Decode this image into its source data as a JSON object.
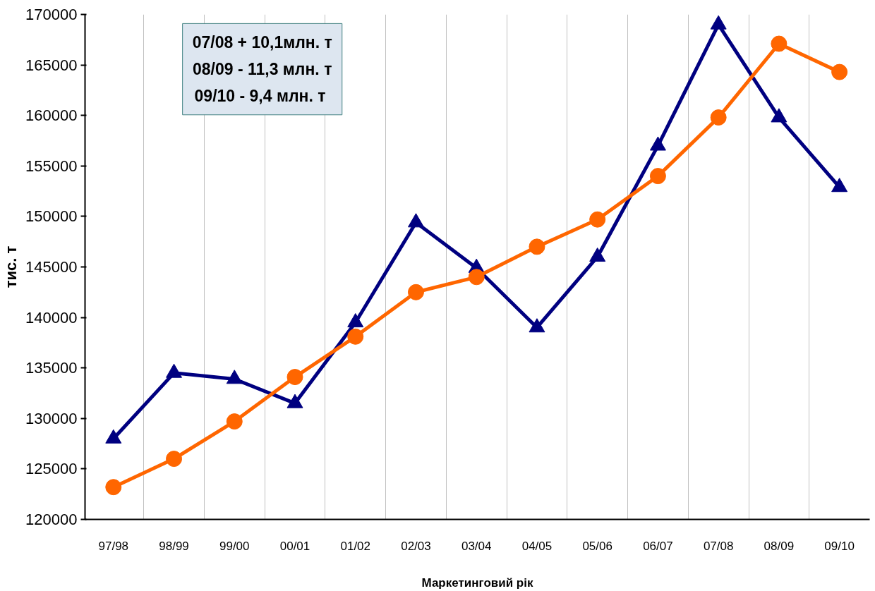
{
  "chart_data": {
    "type": "line",
    "xlabel": "Маркетинговий рік",
    "ylabel": "тис. т",
    "categories": [
      "97/98",
      "98/99",
      "99/00",
      "00/01",
      "01/02",
      "02/03",
      "03/04",
      "04/05",
      "05/06",
      "06/07",
      "07/08",
      "08/09",
      "09/10"
    ],
    "series": [
      {
        "color": "#000080",
        "marker": "triangle",
        "values": [
          128000,
          134500,
          133900,
          131500,
          139500,
          149400,
          144900,
          139000,
          146000,
          157000,
          169000,
          159800,
          152900
        ]
      },
      {
        "color": "#ff6600",
        "marker": "circle",
        "values": [
          123200,
          126000,
          129700,
          134100,
          138100,
          142500,
          144000,
          147000,
          149700,
          154000,
          159800,
          167100,
          164300
        ]
      }
    ],
    "ylim": [
      120000,
      170000
    ],
    "yticks": [
      120000,
      125000,
      130000,
      135000,
      140000,
      145000,
      150000,
      155000,
      160000,
      165000,
      170000
    ],
    "grid": "x",
    "annotations": [
      "07/08 + 10,1млн. т",
      "08/09 - 11,3 млн. т",
      "09/10 -  9,4 млн. т"
    ]
  }
}
